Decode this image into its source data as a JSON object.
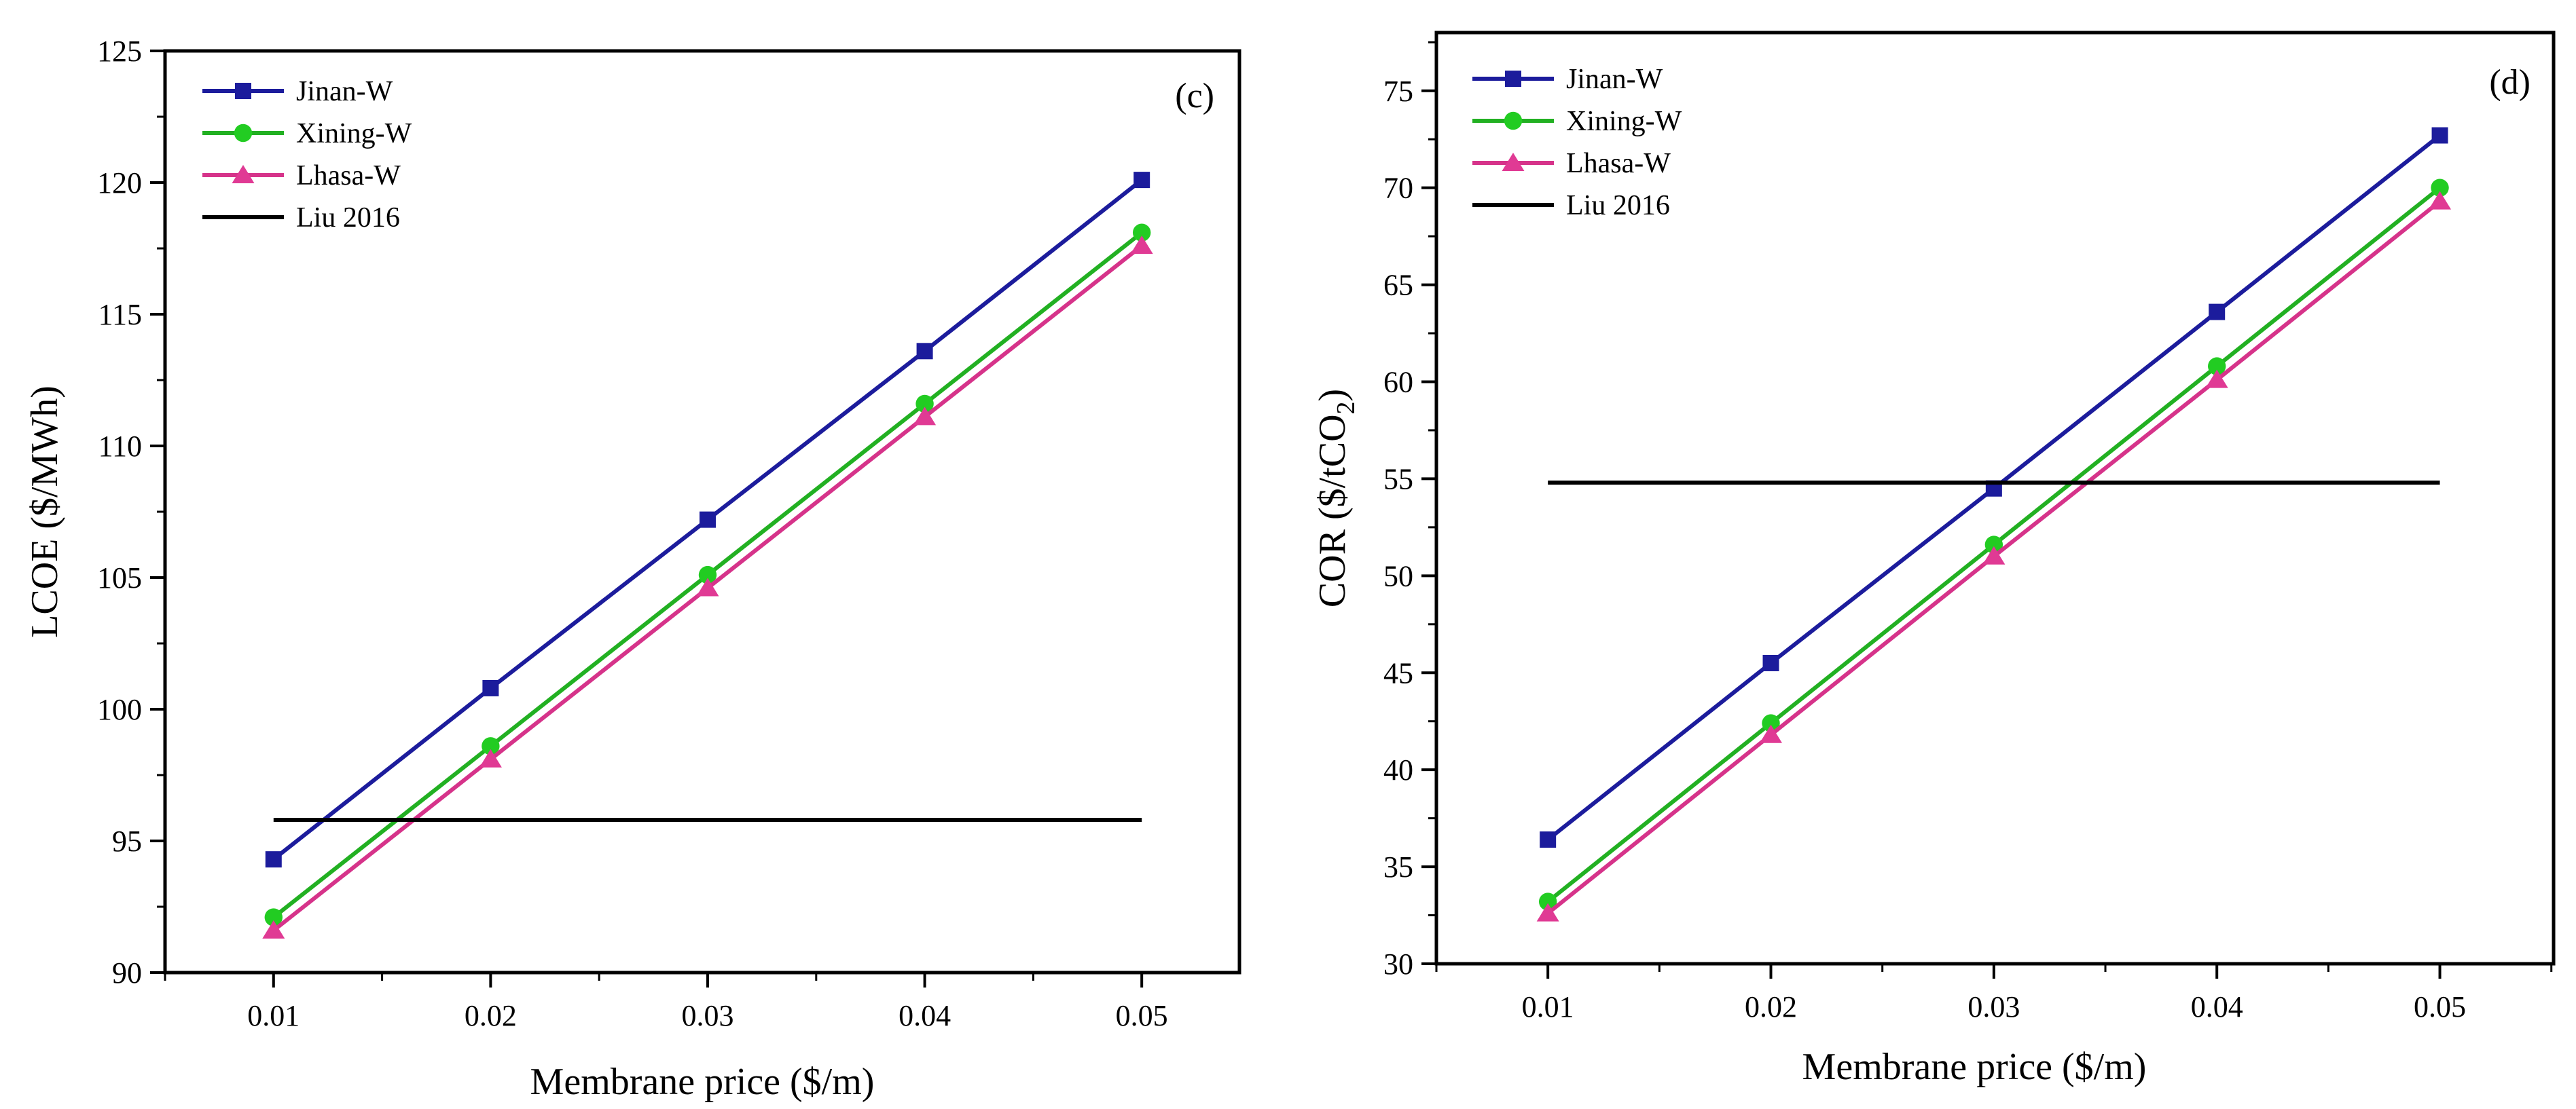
{
  "chart_data": [
    {
      "type": "line",
      "panel_label": "(c)",
      "x": [
        0.01,
        0.02,
        0.03,
        0.04,
        0.05
      ],
      "x_tick_labels": [
        "0.01",
        "0.02",
        "0.03",
        "0.04",
        "0.05"
      ],
      "xlim": [
        0.005,
        0.0545
      ],
      "xlabel": "Membrane price ($/m)",
      "ylabel": "LCOE ($/MWh)",
      "ylim": [
        90,
        125
      ],
      "y_ticks": [
        90,
        95,
        100,
        105,
        110,
        115,
        120,
        125
      ],
      "y_tick_labels": [
        "90",
        "95",
        "100",
        "105",
        "110",
        "115",
        "120",
        "125"
      ],
      "legend_position": "top-left",
      "grid": false,
      "series": [
        {
          "name": "Jinan-W",
          "marker": "square",
          "color": "#1c1c9c",
          "marker_color": "#1c1c9c",
          "values": [
            94.3,
            100.8,
            107.2,
            113.6,
            120.1
          ]
        },
        {
          "name": "Xining-W",
          "marker": "circle",
          "color": "#22b022",
          "marker_color": "#22cc22",
          "values": [
            92.1,
            98.6,
            105.1,
            111.6,
            118.1
          ]
        },
        {
          "name": "Lhasa-W",
          "marker": "triangle",
          "color": "#d6338a",
          "marker_color": "#e03a94",
          "values": [
            91.6,
            98.1,
            104.6,
            111.1,
            117.6
          ]
        },
        {
          "name": "Liu 2016",
          "marker": "none",
          "color": "#000000",
          "constant": 95.8,
          "x_range": [
            0.01,
            0.05
          ]
        }
      ]
    },
    {
      "type": "line",
      "panel_label": "(d)",
      "x": [
        0.01,
        0.02,
        0.03,
        0.04,
        0.05
      ],
      "x_tick_labels": [
        "0.01",
        "0.02",
        "0.03",
        "0.04",
        "0.05"
      ],
      "xlim": [
        0.005,
        0.0551
      ],
      "xlabel": "Membrane price ($/m)",
      "ylabel_main": "COR ($/tCO",
      "ylabel_sub": "2",
      "ylabel_tail": ")",
      "ylim": [
        30,
        78
      ],
      "y_ticks": [
        30,
        35,
        40,
        45,
        50,
        55,
        60,
        65,
        70,
        75
      ],
      "y_tick_labels": [
        "30",
        "35",
        "40",
        "45",
        "50",
        "55",
        "60",
        "65",
        "70",
        "75"
      ],
      "legend_position": "top-left",
      "grid": false,
      "series": [
        {
          "name": "Jinan-W",
          "marker": "square",
          "color": "#1c1c9c",
          "marker_color": "#1c1c9c",
          "values": [
            36.4,
            45.5,
            54.5,
            63.6,
            72.7
          ]
        },
        {
          "name": "Xining-W",
          "marker": "circle",
          "color": "#22b022",
          "marker_color": "#22cc22",
          "values": [
            33.2,
            42.4,
            51.6,
            60.8,
            70.0
          ]
        },
        {
          "name": "Lhasa-W",
          "marker": "triangle",
          "color": "#d6338a",
          "marker_color": "#e03a94",
          "values": [
            32.6,
            41.8,
            51.0,
            60.1,
            69.3
          ]
        },
        {
          "name": "Liu 2016",
          "marker": "none",
          "color": "#000000",
          "constant": 54.8,
          "x_range": [
            0.01,
            0.05
          ]
        }
      ]
    }
  ]
}
